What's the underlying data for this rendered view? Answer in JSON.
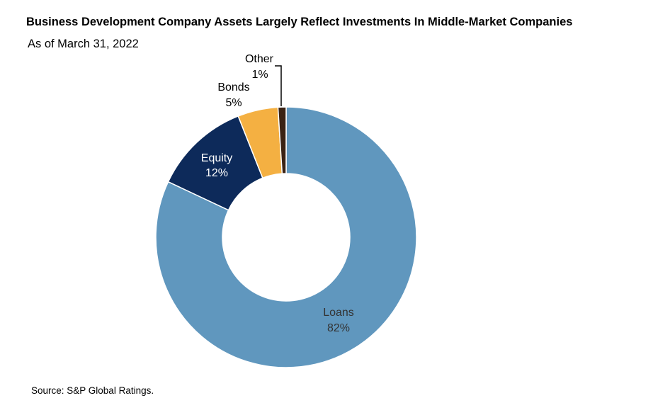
{
  "chart_data": {
    "type": "pie",
    "subtype": "donut",
    "title": "Business Development Company Assets Largely Reflect Investments In Middle-Market Companies",
    "subtitle": "As of March 31, 2022",
    "source": "Source: S&P Global Ratings.",
    "slices": [
      {
        "label": "Loans",
        "value": 82,
        "value_label": "82%",
        "color": "#6097BE",
        "text_color": "#333333"
      },
      {
        "label": "Equity",
        "value": 12,
        "value_label": "12%",
        "color": "#0D2A5A",
        "text_color": "#ffffff"
      },
      {
        "label": "Bonds",
        "value": 5,
        "value_label": "5%",
        "color": "#F4B042",
        "text_color": "#000000"
      },
      {
        "label": "Other",
        "value": 1,
        "value_label": "1%",
        "color": "#3B2314",
        "text_color": "#000000"
      }
    ]
  }
}
